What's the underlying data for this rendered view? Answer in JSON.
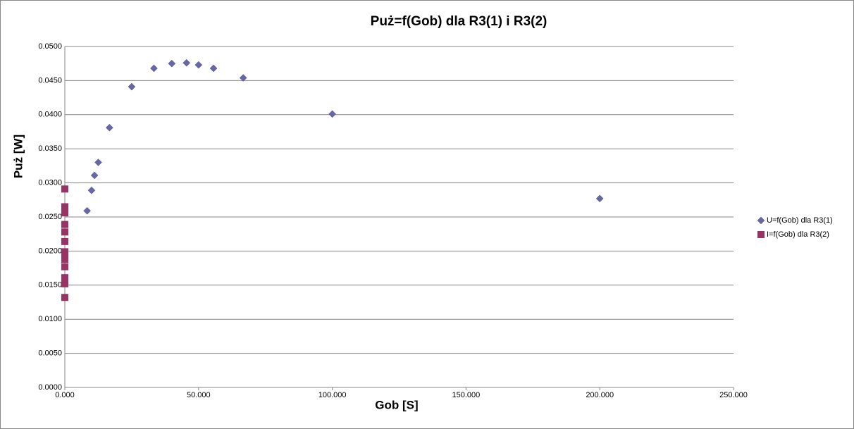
{
  "chart_data": {
    "type": "scatter",
    "title": "Puż=f(Gob) dla R3(1) i R3(2)",
    "x_label": "Gob [S]",
    "y_label": "Puż [W]",
    "xlim": [
      0,
      250
    ],
    "ylim": [
      0,
      0.05
    ],
    "xticks": [
      {
        "value": 0,
        "label": "0.000"
      },
      {
        "value": 50,
        "label": "50.000"
      },
      {
        "value": 100,
        "label": "100.000"
      },
      {
        "value": 150,
        "label": "150.000"
      },
      {
        "value": 200,
        "label": "200.000"
      },
      {
        "value": 250,
        "label": "250.000"
      }
    ],
    "yticks": [
      {
        "value": 0,
        "label": "0.0000"
      },
      {
        "value": 0.005,
        "label": "0.0050"
      },
      {
        "value": 0.01,
        "label": "0.0100"
      },
      {
        "value": 0.015,
        "label": "0.0150"
      },
      {
        "value": 0.02,
        "label": "0.0200"
      },
      {
        "value": 0.025,
        "label": "0.0250"
      },
      {
        "value": 0.03,
        "label": "0.0300"
      },
      {
        "value": 0.035,
        "label": "0.0350"
      },
      {
        "value": 0.04,
        "label": "0.0400"
      },
      {
        "value": 0.045,
        "label": "0.0450"
      },
      {
        "value": 0.05,
        "label": "0.0500"
      }
    ],
    "grid": true,
    "legend": "right",
    "series": [
      {
        "name": "U=f(Gob) dla R3(1)",
        "color": "#6767a8",
        "marker": "diamond",
        "x": [
          8.33,
          10,
          11.1,
          12.5,
          16.7,
          25,
          33.3,
          40,
          45.5,
          50,
          55.6,
          66.7,
          100,
          200
        ],
        "values": [
          0.0259,
          0.0289,
          0.0311,
          0.033,
          0.0381,
          0.0441,
          0.0468,
          0.0475,
          0.0476,
          0.0473,
          0.0468,
          0.0454,
          0.0401,
          0.0277
        ]
      },
      {
        "name": "I=f(Gob) dla  R3(2)",
        "color": "#993366",
        "marker": "square",
        "x": [
          0,
          0,
          0,
          0,
          0,
          0,
          0,
          0,
          0,
          0,
          0,
          0,
          0,
          0,
          0
        ],
        "values": [
          0.0291,
          0.0265,
          0.0261,
          0.0256,
          0.0239,
          0.0228,
          0.0214,
          0.0199,
          0.0194,
          0.0188,
          0.0177,
          0.0161,
          0.0157,
          0.0152,
          0.0132
        ]
      }
    ]
  }
}
